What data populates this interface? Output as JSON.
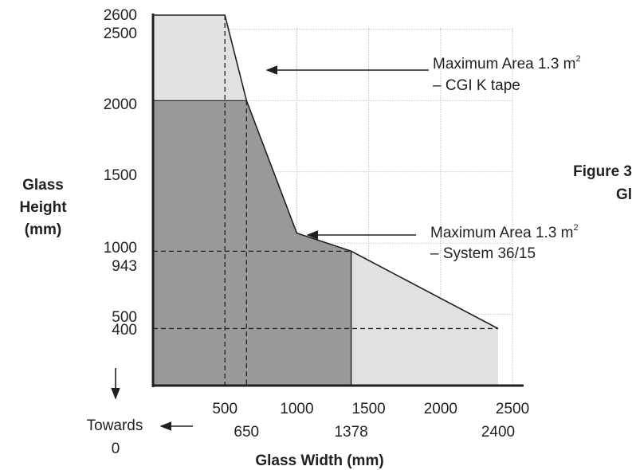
{
  "chart_data": {
    "type": "area",
    "xlabel": "Glass Width (mm)",
    "ylabel_lines": [
      "Glass",
      "Height",
      "(mm)"
    ],
    "xlim": [
      0,
      2500
    ],
    "ylim": [
      0,
      2600
    ],
    "grid": true,
    "x_ticks_top": [
      "500",
      "1000",
      "1500",
      "2000",
      "2500"
    ],
    "x_ticks_bottom": [
      "650",
      "1378",
      "2400"
    ],
    "y_ticks": [
      "2600",
      "2500",
      "2000",
      "1500",
      "1000",
      "943",
      "500",
      "400"
    ],
    "y_tick_values": [
      2600,
      2500,
      2000,
      1500,
      1000,
      943,
      500,
      400
    ],
    "series": [
      {
        "name": "Maximum Area 1.3 m² – CGI K tape",
        "color": "#e1e1e3",
        "points": [
          [
            0,
            2600
          ],
          [
            500,
            2600
          ],
          [
            650,
            2000
          ],
          [
            1000,
            1070
          ],
          [
            1378,
            943
          ],
          [
            2400,
            400
          ],
          [
            2400,
            0
          ],
          [
            0,
            0
          ]
        ]
      },
      {
        "name": "Maximum Area 1.3 m² – System 36/15",
        "color": "#99999b",
        "points": [
          [
            0,
            2000
          ],
          [
            650,
            2000
          ],
          [
            1000,
            1070
          ],
          [
            1378,
            943
          ],
          [
            1378,
            0
          ],
          [
            0,
            0
          ]
        ]
      }
    ],
    "reference_lines": [
      {
        "x": 500
      },
      {
        "x": 650
      },
      {
        "y": 943,
        "x_end": 1378
      },
      {
        "y": 400,
        "x_end": 2400
      }
    ],
    "annotations": [
      {
        "line1": "Maximum Area 1.3 m",
        "sup": "2",
        "line2": "– CGI K tape"
      },
      {
        "line1": "Maximum Area 1.3 m",
        "sup": "2",
        "line2": "– System 36/15"
      }
    ],
    "side_text": {
      "figure": "Figure 3",
      "partial": "Gl",
      "towards": "Towards",
      "zero": "0"
    }
  }
}
